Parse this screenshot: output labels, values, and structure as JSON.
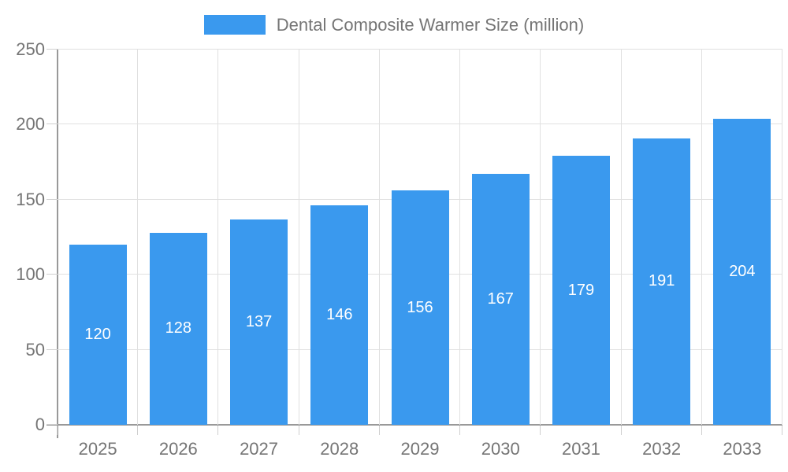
{
  "chart_data": {
    "type": "bar",
    "title": "Dental Composite Warmer Size (million)",
    "legend_position": "top",
    "categories": [
      "2025",
      "2026",
      "2027",
      "2028",
      "2029",
      "2030",
      "2031",
      "2032",
      "2033"
    ],
    "series": [
      {
        "name": "Dental Composite Warmer Size (million)",
        "values": [
          120,
          128,
          137,
          146,
          156,
          167,
          179,
          191,
          204
        ]
      }
    ],
    "data_labels_shown": true,
    "xlabel": "",
    "ylabel": "",
    "ylim": [
      0,
      250
    ],
    "yticks": [
      0,
      50,
      100,
      150,
      200,
      250
    ],
    "grid": true,
    "colors": {
      "bar": "#3A99EE",
      "bar_label_text": "#FFFFFF",
      "axis_line": "#999999",
      "gridline": "#E0E0E0",
      "tick_text": "#757575",
      "legend_text": "#757575",
      "background": "#FFFFFF"
    }
  }
}
